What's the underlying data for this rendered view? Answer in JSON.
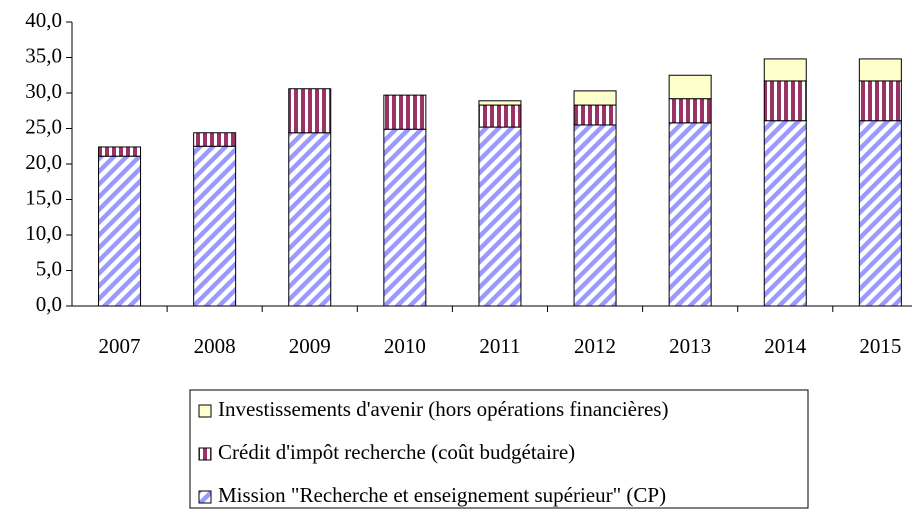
{
  "chart_data": {
    "type": "stacked_bar",
    "categories": [
      "2007",
      "2008",
      "2009",
      "2010",
      "2011",
      "2012",
      "2013",
      "2014",
      "2015"
    ],
    "series": [
      {
        "name": "Mission \"Recherche et enseignement supérieur\" (CP)",
        "color": "#9999ff",
        "values": [
          21.1,
          22.5,
          24.4,
          24.9,
          25.2,
          25.5,
          25.8,
          26.1,
          26.1
        ]
      },
      {
        "name": "Crédit d'impôt recherche (coût budgétaire)",
        "color": "#993366",
        "values": [
          1.3,
          1.9,
          6.2,
          4.8,
          3.1,
          2.8,
          3.4,
          5.6,
          5.6
        ]
      },
      {
        "name": "Investissements d'avenir (hors opérations financières)",
        "color": "#ffffcc",
        "values": [
          0,
          0,
          0,
          0,
          0.6,
          2.0,
          3.3,
          3.1,
          3.1
        ]
      }
    ],
    "ylim": [
      0,
      40
    ],
    "yticks": [
      {
        "value": 0,
        "label": "0,0"
      },
      {
        "value": 5,
        "label": "5,0"
      },
      {
        "value": 10,
        "label": "10,0"
      },
      {
        "value": 15,
        "label": "15,0"
      },
      {
        "value": 20,
        "label": "20,0"
      },
      {
        "value": 25,
        "label": "25,0"
      },
      {
        "value": 30,
        "label": "30,0"
      },
      {
        "value": 35,
        "label": "35,0"
      },
      {
        "value": 40,
        "label": "40,0"
      }
    ],
    "legend": "bottom"
  }
}
